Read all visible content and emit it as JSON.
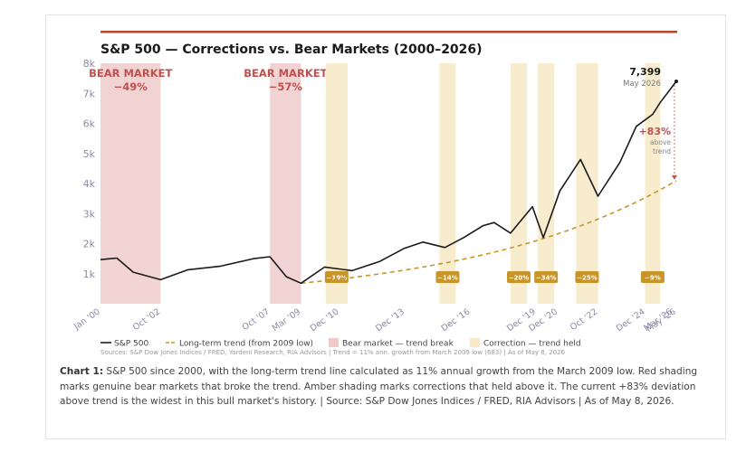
{
  "chart_data": {
    "type": "line",
    "title": "S&P 500 — Corrections vs. Bear Markets (2000–2026)",
    "xlabel": "",
    "ylabel": "",
    "ylim": [
      0,
      8000
    ],
    "y_ticks": [
      {
        "value": 1000,
        "label": "1k"
      },
      {
        "value": 2000,
        "label": "2k"
      },
      {
        "value": 3000,
        "label": "3k"
      },
      {
        "value": 4000,
        "label": "4k"
      },
      {
        "value": 5000,
        "label": "5k"
      },
      {
        "value": 6000,
        "label": "6k"
      },
      {
        "value": 7000,
        "label": "7k"
      },
      {
        "value": 8000,
        "label": "8k"
      }
    ],
    "x_ticks": [
      {
        "x": 2000.0,
        "label": "Jan '00"
      },
      {
        "x": 2002.75,
        "label": "Oct '02"
      },
      {
        "x": 2007.75,
        "label": "Oct '07"
      },
      {
        "x": 2009.17,
        "label": "Mar '09"
      },
      {
        "x": 2010.92,
        "label": "Dec '10"
      },
      {
        "x": 2013.92,
        "label": "Dec '13"
      },
      {
        "x": 2016.92,
        "label": "Dec '16"
      },
      {
        "x": 2019.92,
        "label": "Dec '19"
      },
      {
        "x": 2020.92,
        "label": "Dec '20"
      },
      {
        "x": 2022.75,
        "label": "Oct '22"
      },
      {
        "x": 2024.92,
        "label": "Dec '24"
      },
      {
        "x": 2026.17,
        "label": "Mar '26"
      },
      {
        "x": 2026.33,
        "label": "May '26"
      }
    ],
    "series": [
      {
        "name": "S&P 500",
        "color": "#1a1a1a",
        "points": [
          [
            2000.0,
            1469
          ],
          [
            2000.75,
            1520
          ],
          [
            2001.5,
            1050
          ],
          [
            2002.75,
            800
          ],
          [
            2004.0,
            1130
          ],
          [
            2005.5,
            1250
          ],
          [
            2007.0,
            1500
          ],
          [
            2007.75,
            1565
          ],
          [
            2008.5,
            900
          ],
          [
            2009.17,
            683
          ],
          [
            2010.25,
            1220
          ],
          [
            2011.5,
            1100
          ],
          [
            2012.75,
            1400
          ],
          [
            2013.9,
            1848
          ],
          [
            2014.75,
            2050
          ],
          [
            2015.75,
            1870
          ],
          [
            2016.6,
            2200
          ],
          [
            2017.5,
            2600
          ],
          [
            2018.0,
            2700
          ],
          [
            2018.75,
            2350
          ],
          [
            2019.75,
            3230
          ],
          [
            2020.25,
            2200
          ],
          [
            2021.0,
            3750
          ],
          [
            2021.95,
            4800
          ],
          [
            2022.75,
            3580
          ],
          [
            2023.75,
            4700
          ],
          [
            2024.5,
            5900
          ],
          [
            2025.25,
            6300
          ],
          [
            2025.6,
            6700
          ],
          [
            2026.33,
            7399
          ]
        ]
      },
      {
        "name": "Long-term trend (from 2009 low)",
        "color": "#c8952a",
        "growth_rate": 0.11,
        "start": [
          2009.17,
          683
        ],
        "end_x": 2026.33
      }
    ],
    "bear_markets": [
      {
        "start": 2000.0,
        "end": 2002.75,
        "label": "BEAR MARKET",
        "pct": "−49%"
      },
      {
        "start": 2007.75,
        "end": 2009.17,
        "label": "BEAR MARKET",
        "pct": "−57%"
      }
    ],
    "corrections": [
      {
        "start": 2010.3,
        "end": 2011.3,
        "pct": "−19%"
      },
      {
        "start": 2015.5,
        "end": 2016.25,
        "pct": "−14%"
      },
      {
        "start": 2018.75,
        "end": 2019.5,
        "pct": "−20%"
      },
      {
        "start": 2020.0,
        "end": 2020.75,
        "pct": "−34%"
      },
      {
        "start": 2021.75,
        "end": 2022.75,
        "pct": "−25%"
      },
      {
        "start": 2024.9,
        "end": 2025.6,
        "pct": "−9%"
      }
    ],
    "annotation_last": {
      "value": "7,399",
      "date": "May 2026"
    },
    "annotation_deviation": {
      "pct": "+83%",
      "line1": "above",
      "line2": "trend"
    },
    "legend": [
      {
        "type": "line",
        "label": "S&P 500",
        "color": "#1a1a1a"
      },
      {
        "type": "dashed",
        "label": "Long-term trend (from 2009 low)",
        "color": "#c8952a"
      },
      {
        "type": "box",
        "label": "Bear market — trend break",
        "color": "#f2c9c9"
      },
      {
        "type": "box",
        "label": "Correction — trend held",
        "color": "#f7e9c6"
      }
    ],
    "legend_position": "bottom-left",
    "sources": "Sources: S&P Dow Jones Indices / FRED, Yardeni Research, RIA Advisors  |  Trend = 11% ann. growth from March 2009 low (683)  |  As of May 8, 2026",
    "grid": false
  },
  "caption": {
    "label": "Chart 1:",
    "text": " S&P 500 since 2000, with the long-term trend line calculated as 11% annual growth from the March 2009 low. Red shading marks genuine bear markets that broke the trend. Amber shading marks corrections that held above it. The current +83% deviation above trend is the widest in this bull market's history.  |  Source: S&P Dow Jones Indices / FRED, RIA Advisors  |  As of May 8, 2026."
  },
  "colors": {
    "accent_bar": "#b5452b",
    "bear_fill": "#f2d3d3",
    "bear_text": "#c0504d",
    "correction_fill": "#f8ecce",
    "badge_fill": "#c8952a",
    "trend": "#c8952a",
    "price": "#1a1a1a",
    "axis_text": "#8a8aa8"
  }
}
